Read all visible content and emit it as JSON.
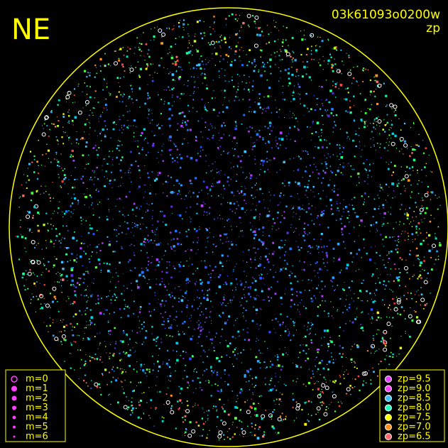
{
  "header": {
    "label": "NE",
    "id": "03k61093o0200w",
    "metric": "zp"
  },
  "magnitude_legend": [
    "m=0",
    "m=1",
    "m=2",
    "m=3",
    "m=4",
    "m=5",
    "m=6"
  ],
  "zp_legend": [
    "zp=9.5",
    "zp=9.0",
    "zp=8.5",
    "zp=8.0",
    "zp=7.5",
    "zp=7.0",
    "zp=6.5"
  ]
}
